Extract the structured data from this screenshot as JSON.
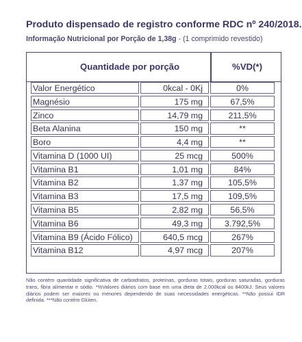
{
  "title": "Produto dispensado de registro conforme RDC nº 240/2018.",
  "subtitle_bold": "Informação Nutricional por Porção de 1,38g",
  "subtitle_rest": " - (1 comprimido revestido)",
  "header": {
    "quantity": "Quantidade por porção",
    "vd": "%VD(*)"
  },
  "rows": [
    {
      "name": "Valor Energético",
      "amount": "0kcal - 0Kj",
      "vd": "0%"
    },
    {
      "name": "Magnésio",
      "amount": "175 mg",
      "vd": "67,5%"
    },
    {
      "name": "Zinco",
      "amount": "14,79 mg",
      "vd": "211,5%"
    },
    {
      "name": "Beta Alanina",
      "amount": "150 mg",
      "vd": "**"
    },
    {
      "name": "Boro",
      "amount": "4,4 mg",
      "vd": "**"
    },
    {
      "name": "Vitamina D (1000 UI)",
      "amount": "25 mcg",
      "vd": "500%"
    },
    {
      "name": "Vitamina B1",
      "amount": "1,01 mg",
      "vd": "84%"
    },
    {
      "name": "Vitamina B2",
      "amount": "1,37 mg",
      "vd": "105,5%"
    },
    {
      "name": "Vitamina B3",
      "amount": "17,5 mg",
      "vd": "109,5%"
    },
    {
      "name": "Vitamina B5",
      "amount": "2,82 mg",
      "vd": "56,5%"
    },
    {
      "name": "Vitamina B6",
      "amount": "49,3 mg",
      "vd": "3.792,5%"
    },
    {
      "name": "Vitamina B9 (Ácido Fólico)",
      "amount": "640,5 mcg",
      "vd": "267%"
    },
    {
      "name": "Vitamina B12",
      "amount": "4,97 mcg",
      "vd": "207%"
    }
  ],
  "footnote": "Não contém quantidade significativa de carboidratos, proteínas, gorduras totais, gorduras saturadas, gorduras trans, fibra alimentar e sódio. *%Valores diários com base em uma dieta de 2.000kcal ou 8400kJ. Seus valores diários podem ser maiores ou menores dependendo de suas necessidades energéticas. **Não possui IDR definida. ***Não contém Glúten."
}
